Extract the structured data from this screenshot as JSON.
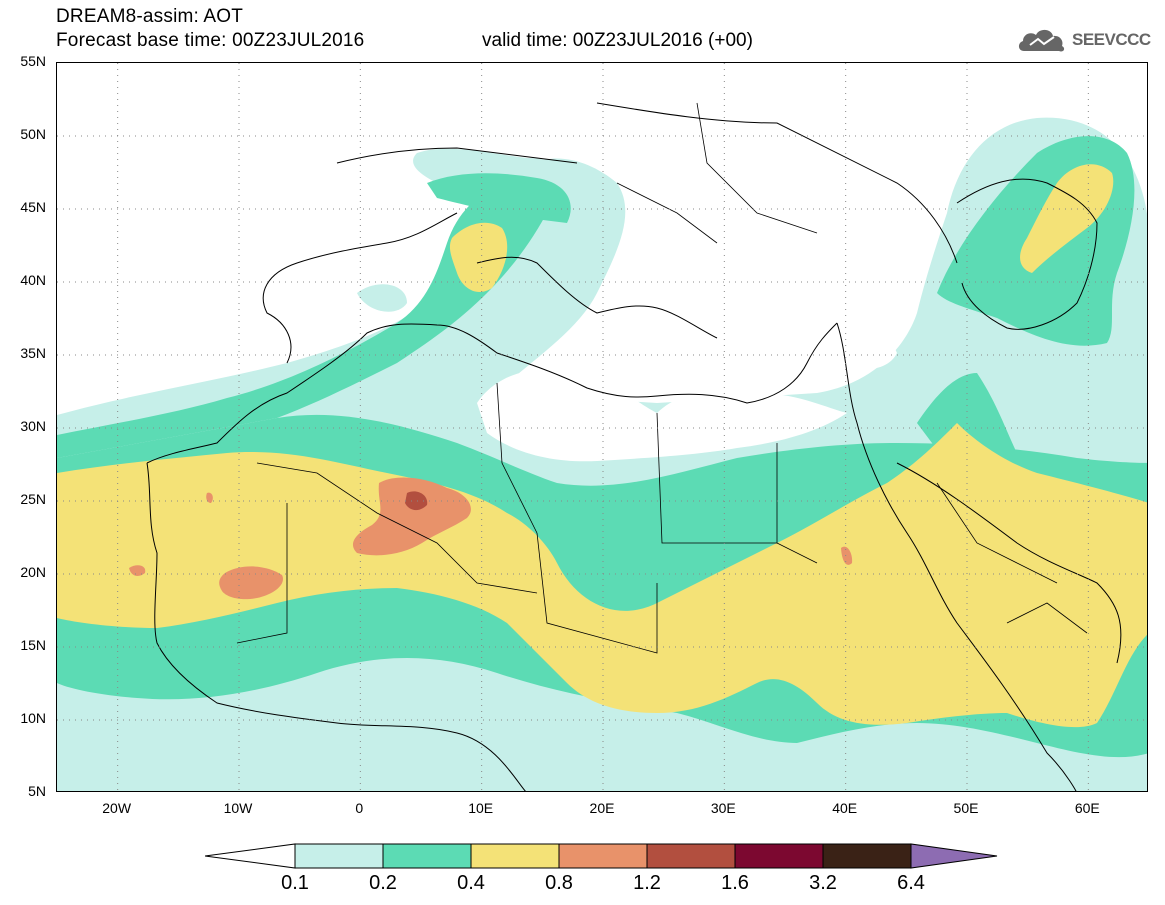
{
  "header": {
    "title": "DREAM8-assim: AOT",
    "base_time": "Forecast base time: 00Z23JUL2016",
    "valid_time": "valid time: 00Z23JUL2016 (+00)"
  },
  "logo": {
    "icon": "cloud-icon",
    "text": "SEEVCCC"
  },
  "map": {
    "lat_labels": [
      "55N",
      "50N",
      "45N",
      "40N",
      "35N",
      "30N",
      "25N",
      "20N",
      "15N",
      "10N",
      "5N"
    ],
    "lon_labels": [
      "20W",
      "10W",
      "0",
      "10E",
      "20E",
      "30E",
      "40E",
      "50E",
      "60E"
    ],
    "lon_range": [
      -25,
      65
    ],
    "lat_range": [
      5,
      55
    ],
    "grid": "dotted"
  },
  "colorbar": {
    "levels": [
      "0.1",
      "0.2",
      "0.4",
      "0.8",
      "1.2",
      "1.6",
      "3.2",
      "6.4"
    ],
    "colors": {
      "below": "#ffffff",
      "c1": "#c6efe9",
      "c2": "#5cdbb4",
      "c3": "#f4e277",
      "c4": "#e8926a",
      "c5": "#b24f3f",
      "c6": "#7c0830",
      "c7": "#3a2216",
      "above": "#8d6cb2"
    }
  }
}
